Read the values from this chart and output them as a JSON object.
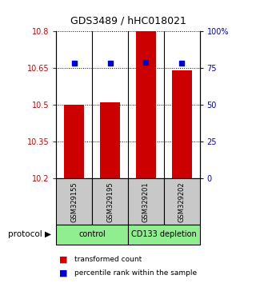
{
  "title": "GDS3489 / hHC018021",
  "categories": [
    "GSM329155",
    "GSM329195",
    "GSM329201",
    "GSM329202"
  ],
  "red_values": [
    10.5,
    10.51,
    10.8,
    10.64
  ],
  "blue_values": [
    78,
    78,
    79,
    78
  ],
  "ylim_left": [
    10.2,
    10.8
  ],
  "ylim_right": [
    0,
    100
  ],
  "yticks_left": [
    10.2,
    10.35,
    10.5,
    10.65,
    10.8
  ],
  "ytick_labels_left": [
    "10.2",
    "10.35",
    "10.5",
    "10.65",
    "10.8"
  ],
  "yticks_right": [
    0,
    25,
    50,
    75,
    100
  ],
  "ytick_labels_right": [
    "0",
    "25",
    "50",
    "75",
    "100%"
  ],
  "bar_color": "#cc0000",
  "marker_color": "#0000cc",
  "protocol_groups": [
    {
      "label": "control",
      "indices": [
        0,
        1
      ]
    },
    {
      "label": "CD133 depletion",
      "indices": [
        2,
        3
      ]
    }
  ],
  "protocol_color": "#90ee90",
  "tickbox_color": "#c8c8c8",
  "legend_red": "transformed count",
  "legend_blue": "percentile rank within the sample",
  "protocol_label": "protocol",
  "background_color": "#ffffff"
}
